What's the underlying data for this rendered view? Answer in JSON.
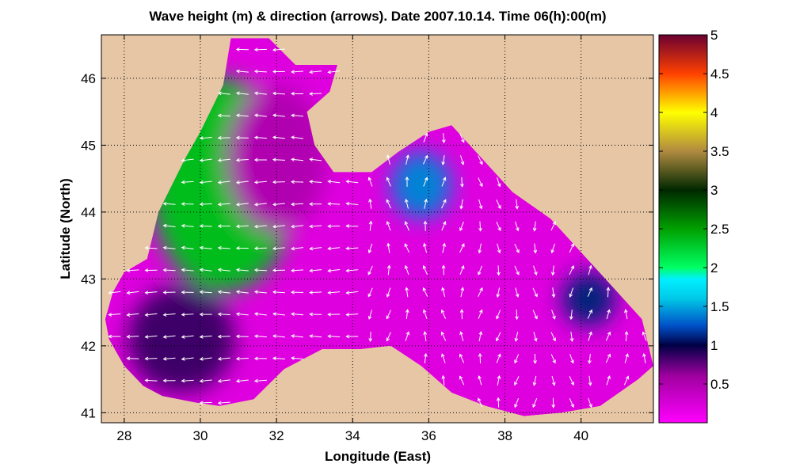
{
  "chart_data": {
    "type": "heatmap",
    "title": "Wave height (m) & direction (arrows). Date 2007.10.14. Time 06(h):00(m)",
    "xlabel": "Longitude (East)",
    "ylabel": "Latitude (North)",
    "xlim": [
      27.4,
      41.9
    ],
    "ylim": [
      40.85,
      46.65
    ],
    "xticks": [
      "28",
      "30",
      "32",
      "34",
      "36",
      "38",
      "40"
    ],
    "yticks": [
      "41",
      "42",
      "43",
      "44",
      "45",
      "46"
    ],
    "grid": true,
    "background_color": "#e6c6a5",
    "colorbar": {
      "label_ticks": [
        "0.5",
        "1",
        "1.5",
        "2",
        "2.5",
        "3",
        "3.5",
        "4",
        "4.5",
        "5"
      ],
      "range": [
        0,
        5
      ],
      "colormap_stops": [
        {
          "v": 0.0,
          "c": "#ff00ff"
        },
        {
          "v": 0.6,
          "c": "#a000a0"
        },
        {
          "v": 1.0,
          "c": "#000045"
        },
        {
          "v": 1.25,
          "c": "#0050c8"
        },
        {
          "v": 1.6,
          "c": "#00c8e6"
        },
        {
          "v": 1.85,
          "c": "#00f0ff"
        },
        {
          "v": 2.0,
          "c": "#00ff64"
        },
        {
          "v": 2.5,
          "c": "#00a000"
        },
        {
          "v": 3.0,
          "c": "#002800"
        },
        {
          "v": 3.5,
          "c": "#b08a40"
        },
        {
          "v": 4.0,
          "c": "#ffff00"
        },
        {
          "v": 4.5,
          "c": "#ff4000"
        },
        {
          "v": 5.0,
          "c": "#6a0030"
        }
      ]
    },
    "sea_outline_lonlat": [
      [
        27.5,
        42.4
      ],
      [
        27.7,
        42.8
      ],
      [
        28.0,
        43.1
      ],
      [
        28.6,
        43.3
      ],
      [
        28.9,
        44.0
      ],
      [
        29.6,
        44.8
      ],
      [
        30.0,
        45.2
      ],
      [
        30.6,
        45.9
      ],
      [
        30.8,
        46.6
      ],
      [
        31.8,
        46.6
      ],
      [
        32.5,
        46.2
      ],
      [
        33.6,
        46.2
      ],
      [
        33.4,
        45.8
      ],
      [
        32.8,
        45.5
      ],
      [
        33.0,
        45.0
      ],
      [
        33.5,
        44.6
      ],
      [
        34.5,
        44.6
      ],
      [
        35.2,
        44.9
      ],
      [
        36.0,
        45.2
      ],
      [
        36.6,
        45.3
      ],
      [
        37.4,
        44.8
      ],
      [
        38.2,
        44.3
      ],
      [
        39.2,
        43.9
      ],
      [
        40.0,
        43.4
      ],
      [
        40.8,
        42.9
      ],
      [
        41.6,
        42.4
      ],
      [
        41.9,
        41.7
      ],
      [
        41.5,
        41.5
      ],
      [
        40.5,
        41.1
      ],
      [
        39.5,
        41.0
      ],
      [
        38.5,
        40.95
      ],
      [
        37.5,
        41.1
      ],
      [
        36.6,
        41.3
      ],
      [
        35.8,
        41.7
      ],
      [
        35.0,
        42.0
      ],
      [
        34.2,
        41.95
      ],
      [
        33.2,
        41.95
      ],
      [
        32.2,
        41.65
      ],
      [
        31.4,
        41.2
      ],
      [
        30.5,
        41.1
      ],
      [
        29.9,
        41.15
      ],
      [
        29.0,
        41.25
      ],
      [
        28.5,
        41.4
      ],
      [
        28.0,
        41.7
      ],
      [
        27.6,
        42.1
      ]
    ],
    "wave_height_blobs_lonlat": [
      {
        "lon": 30.6,
        "lat": 44.4,
        "sx": 1.9,
        "sy": 1.6,
        "value": 2.35
      },
      {
        "lon": 29.5,
        "lat": 42.1,
        "sx": 1.4,
        "sy": 0.8,
        "value": 0.85
      },
      {
        "lon": 32.0,
        "lat": 44.8,
        "sx": 1.3,
        "sy": 1.1,
        "value": 0.5
      },
      {
        "lon": 35.8,
        "lat": 44.4,
        "sx": 0.8,
        "sy": 0.5,
        "value": 1.4
      },
      {
        "lon": 40.2,
        "lat": 42.7,
        "sx": 0.7,
        "sy": 0.4,
        "value": 1.1
      }
    ],
    "wave_direction_arrows": {
      "west_basin": "westward",
      "east_basin": "mixed, mostly northward and southward"
    }
  }
}
